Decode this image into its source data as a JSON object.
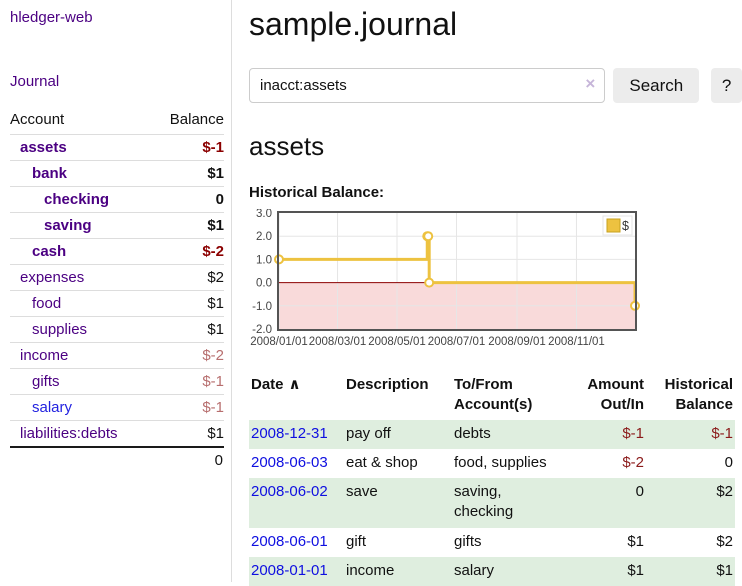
{
  "app": {
    "title": "hledger-web"
  },
  "colors": {
    "accent_purple": "#4b0082",
    "link_blue": "#0f0fe0",
    "negative_strong": "#8b0000",
    "negative_muted": "#b76e6e",
    "negative_table": "#8b1a1a",
    "row_green": "#dfeedf",
    "chart_gold": "#edc240",
    "negative_region_pink": "#f9dada"
  },
  "sidebar": {
    "journal_link": "Journal",
    "accounts_table": {
      "headers": {
        "account": "Account",
        "balance": "Balance"
      },
      "rows": [
        {
          "account": "assets",
          "balance": "$-1",
          "indent": 0,
          "bold": true,
          "balance_color": "negative-strong"
        },
        {
          "account": "bank",
          "balance": "$1",
          "indent": 1,
          "bold": true,
          "balance_color": "normal"
        },
        {
          "account": "checking",
          "balance": "0",
          "indent": 2,
          "bold": true,
          "balance_color": "normal"
        },
        {
          "account": "saving",
          "balance": "$1",
          "indent": 2,
          "bold": true,
          "balance_color": "normal"
        },
        {
          "account": "cash",
          "balance": "$-2",
          "indent": 1,
          "bold": true,
          "balance_color": "negative-strong"
        },
        {
          "account": "expenses",
          "balance": "$2",
          "indent": 0,
          "bold": false,
          "balance_color": "normal"
        },
        {
          "account": "food",
          "balance": "$1",
          "indent": 1,
          "bold": false,
          "balance_color": "normal"
        },
        {
          "account": "supplies",
          "balance": "$1",
          "indent": 1,
          "bold": false,
          "balance_color": "normal"
        },
        {
          "account": "income",
          "balance": "$-2",
          "indent": 0,
          "bold": false,
          "balance_color": "negative-muted"
        },
        {
          "account": "gifts",
          "balance": "$-1",
          "indent": 1,
          "bold": false,
          "balance_color": "negative-muted"
        },
        {
          "account": "salary",
          "balance": "$-1",
          "indent": 1,
          "bold": false,
          "balance_color": "negative-muted",
          "link_color": "blue"
        },
        {
          "account": "liabilities:debts",
          "balance": "$1",
          "indent": 0,
          "bold": false,
          "balance_color": "normal"
        }
      ],
      "total": "0"
    }
  },
  "main": {
    "title": "sample.journal",
    "search": {
      "value": "inacct:assets",
      "clear_icon": "×",
      "search_button": "Search",
      "help_button": "?"
    },
    "account_heading": "assets",
    "chart_label": "Historical Balance:"
  },
  "chart_data": {
    "type": "line",
    "step": true,
    "title": "Historical Balance",
    "series": [
      {
        "name": "$",
        "color": "#edc240",
        "points": [
          [
            "2008-01-01",
            1
          ],
          [
            "2008-06-01",
            2
          ],
          [
            "2008-06-02",
            2
          ],
          [
            "2008-06-03",
            0
          ],
          [
            "2008-12-31",
            -1
          ]
        ]
      }
    ],
    "x_ticks": [
      "2008/01/01",
      "2008/03/01",
      "2008/05/01",
      "2008/07/01",
      "2008/09/01",
      "2008/11/01"
    ],
    "y_ticks": [
      3.0,
      2.0,
      1.0,
      0.0,
      -1.0,
      -2.0
    ],
    "xlim": [
      "2008-01-01",
      "2008-12-31"
    ],
    "ylim": [
      -2,
      3
    ],
    "grid": true,
    "legend_position": "top-right",
    "zero_line_color": "#8b0000",
    "negative_region_color": "#f9dada"
  },
  "register_table": {
    "headers": {
      "date": "Date",
      "sort_icon": "∧",
      "description": "Description",
      "tofrom": "To/From Account(s)",
      "amount": "Amount Out/In",
      "balance": "Historical Balance"
    },
    "rows": [
      {
        "date": "2008-12-31",
        "description": "pay off",
        "accounts": "debts",
        "amount": "$-1",
        "balance": "$-1",
        "amount_negative": true,
        "balance_negative": true,
        "green": true
      },
      {
        "date": "2008-06-03",
        "description": "eat & shop",
        "accounts": "food, supplies",
        "amount": "$-2",
        "balance": "0",
        "amount_negative": true,
        "balance_negative": false,
        "green": false
      },
      {
        "date": "2008-06-02",
        "description": "save",
        "accounts": "saving, checking",
        "amount": "0",
        "balance": "$2",
        "amount_negative": false,
        "balance_negative": false,
        "green": true
      },
      {
        "date": "2008-06-01",
        "description": "gift",
        "accounts": "gifts",
        "amount": "$1",
        "balance": "$2",
        "amount_negative": false,
        "balance_negative": false,
        "green": false
      },
      {
        "date": "2008-01-01",
        "description": "income",
        "accounts": "salary",
        "amount": "$1",
        "balance": "$1",
        "amount_negative": false,
        "balance_negative": false,
        "green": true
      }
    ]
  }
}
